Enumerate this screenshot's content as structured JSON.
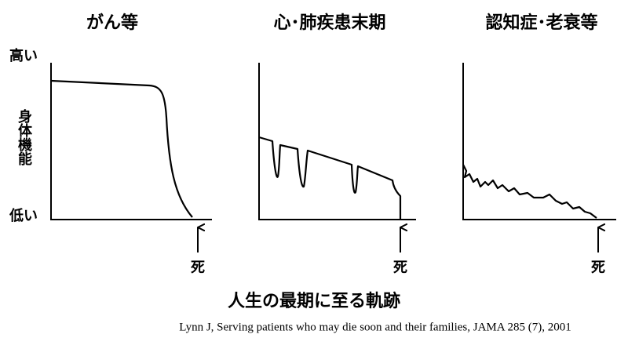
{
  "headings": [
    "がん等",
    "心･肺疾患末期",
    "認知症･老衰等"
  ],
  "y_axis": {
    "high": "高い",
    "label": "身体機能",
    "low": "低い"
  },
  "death_labels": [
    "死",
    "死",
    "死"
  ],
  "caption": "人生の最期に至る軌跡",
  "citation": "Lynn J, Serving patients who may die soon and their families, JAMA 285 (7), 2001"
}
